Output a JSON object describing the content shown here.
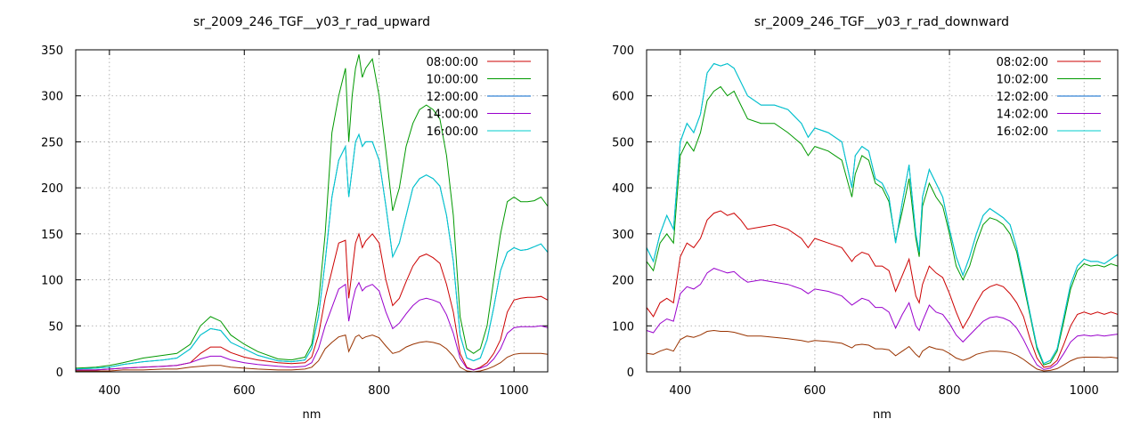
{
  "chart_data": [
    {
      "type": "line",
      "title": "sr_2009_246_TGF__y03_r_rad_upward",
      "xlabel": "nm",
      "ylabel": "",
      "xlim": [
        350,
        1050
      ],
      "ylim": [
        0,
        350
      ],
      "xticks": [
        400,
        600,
        800,
        1000
      ],
      "yticks": [
        0,
        50,
        100,
        150,
        200,
        250,
        300,
        350
      ],
      "grid": true,
      "legend_position": "top-right",
      "x": [
        350,
        380,
        400,
        420,
        450,
        480,
        500,
        520,
        535,
        550,
        565,
        580,
        600,
        620,
        650,
        670,
        690,
        700,
        710,
        720,
        730,
        740,
        750,
        755,
        760,
        765,
        770,
        775,
        780,
        790,
        800,
        810,
        820,
        830,
        840,
        850,
        860,
        870,
        880,
        890,
        900,
        910,
        920,
        930,
        940,
        950,
        960,
        970,
        980,
        990,
        1000,
        1010,
        1020,
        1030,
        1040,
        1050
      ],
      "series": [
        {
          "name": "08:00:00",
          "color": "#cc0000",
          "values": [
            2,
            2,
            3,
            4,
            5,
            6,
            7,
            10,
            20,
            27,
            27,
            21,
            16,
            13,
            10,
            9,
            10,
            16,
            40,
            80,
            110,
            140,
            143,
            80,
            110,
            140,
            150,
            135,
            142,
            150,
            140,
            100,
            72,
            80,
            98,
            115,
            125,
            128,
            124,
            118,
            95,
            65,
            20,
            5,
            2,
            5,
            10,
            20,
            35,
            65,
            78,
            80,
            81,
            81,
            82,
            78
          ]
        },
        {
          "name": "10:00:00",
          "color": "#009900",
          "values": [
            4,
            5,
            7,
            10,
            15,
            18,
            20,
            30,
            50,
            60,
            55,
            40,
            30,
            22,
            14,
            13,
            16,
            30,
            75,
            150,
            260,
            300,
            330,
            250,
            300,
            330,
            345,
            320,
            330,
            340,
            300,
            240,
            175,
            200,
            245,
            270,
            285,
            290,
            285,
            275,
            235,
            170,
            60,
            25,
            20,
            25,
            50,
            100,
            150,
            185,
            190,
            185,
            185,
            186,
            190,
            180
          ]
        },
        {
          "name": "12:00:00",
          "color": "#0066cc",
          "values": [
            3,
            4,
            5,
            8,
            11,
            13,
            15,
            25,
            40,
            47,
            45,
            32,
            25,
            18,
            12,
            11,
            13,
            25,
            60,
            120,
            190,
            230,
            245,
            190,
            220,
            250,
            258,
            245,
            250,
            250,
            230,
            180,
            125,
            140,
            170,
            200,
            210,
            214,
            210,
            202,
            170,
            120,
            40,
            15,
            12,
            15,
            35,
            70,
            110,
            130,
            135,
            132,
            133,
            136,
            139,
            130
          ]
        },
        {
          "name": "14:00:00",
          "color": "#9900cc",
          "values": [
            2,
            2,
            3,
            4,
            5,
            6,
            7,
            10,
            14,
            17,
            17,
            13,
            10,
            8,
            6,
            5,
            6,
            10,
            25,
            50,
            70,
            90,
            95,
            55,
            75,
            90,
            97,
            88,
            92,
            95,
            88,
            65,
            47,
            53,
            63,
            72,
            78,
            80,
            78,
            75,
            62,
            42,
            15,
            4,
            2,
            4,
            7,
            14,
            25,
            42,
            48,
            49,
            49,
            49,
            50,
            48
          ]
        },
        {
          "name": "16:00:00",
          "color": "#00cccc",
          "values": [
            3,
            4,
            5,
            8,
            11,
            13,
            15,
            25,
            40,
            47,
            45,
            32,
            25,
            18,
            12,
            11,
            13,
            25,
            60,
            120,
            190,
            230,
            245,
            190,
            220,
            250,
            258,
            245,
            250,
            250,
            230,
            180,
            125,
            140,
            170,
            200,
            210,
            214,
            210,
            202,
            170,
            120,
            40,
            15,
            12,
            15,
            35,
            70,
            110,
            130,
            135,
            132,
            133,
            136,
            139,
            130
          ]
        },
        {
          "name": "",
          "color": "#993300",
          "values": [
            1,
            1,
            1,
            2,
            2,
            3,
            3,
            5,
            6,
            7,
            7,
            5,
            4,
            3,
            2,
            2,
            3,
            5,
            12,
            25,
            32,
            38,
            40,
            22,
            30,
            38,
            40,
            36,
            38,
            40,
            37,
            28,
            20,
            22,
            27,
            30,
            32,
            33,
            32,
            30,
            25,
            17,
            5,
            1,
            0,
            1,
            3,
            6,
            10,
            16,
            19,
            20,
            20,
            20,
            20,
            19
          ]
        }
      ]
    },
    {
      "type": "line",
      "title": "sr_2009_246_TGF__y03_r_rad_downward",
      "xlabel": "nm",
      "ylabel": "",
      "xlim": [
        350,
        1050
      ],
      "ylim": [
        0,
        700
      ],
      "xticks": [
        400,
        600,
        800,
        1000
      ],
      "yticks": [
        0,
        100,
        200,
        300,
        400,
        500,
        600,
        700
      ],
      "grid": true,
      "legend_position": "top-right",
      "x": [
        350,
        360,
        370,
        380,
        390,
        400,
        410,
        420,
        430,
        440,
        450,
        460,
        470,
        480,
        490,
        500,
        520,
        540,
        560,
        580,
        590,
        600,
        620,
        640,
        655,
        660,
        670,
        680,
        690,
        700,
        710,
        720,
        730,
        740,
        750,
        755,
        760,
        770,
        780,
        790,
        800,
        810,
        820,
        830,
        840,
        850,
        860,
        870,
        880,
        890,
        900,
        910,
        920,
        930,
        940,
        950,
        960,
        970,
        980,
        990,
        1000,
        1010,
        1020,
        1030,
        1040,
        1050
      ],
      "series": [
        {
          "name": "08:02:00",
          "color": "#cc0000",
          "values": [
            140,
            120,
            150,
            160,
            150,
            250,
            280,
            270,
            290,
            330,
            345,
            350,
            340,
            345,
            330,
            310,
            315,
            320,
            310,
            290,
            270,
            290,
            280,
            270,
            240,
            250,
            260,
            255,
            230,
            230,
            220,
            175,
            210,
            245,
            165,
            150,
            190,
            230,
            215,
            205,
            170,
            130,
            95,
            120,
            150,
            175,
            185,
            190,
            185,
            170,
            150,
            120,
            70,
            30,
            10,
            12,
            25,
            60,
            100,
            125,
            130,
            125,
            130,
            125,
            130,
            125
          ]
        },
        {
          "name": "10:02:00",
          "color": "#009900",
          "values": [
            240,
            220,
            280,
            300,
            280,
            470,
            500,
            480,
            520,
            590,
            610,
            620,
            600,
            610,
            580,
            550,
            540,
            540,
            520,
            495,
            470,
            490,
            480,
            460,
            380,
            430,
            470,
            460,
            410,
            400,
            370,
            285,
            350,
            420,
            290,
            250,
            360,
            410,
            380,
            360,
            300,
            230,
            200,
            230,
            280,
            320,
            335,
            330,
            320,
            300,
            260,
            190,
            120,
            50,
            15,
            20,
            45,
            110,
            180,
            220,
            235,
            230,
            232,
            228,
            235,
            230
          ]
        },
        {
          "name": "12:02:00",
          "color": "#0066cc",
          "values": [
            270,
            240,
            300,
            340,
            310,
            500,
            540,
            520,
            560,
            650,
            670,
            665,
            670,
            660,
            630,
            600,
            580,
            580,
            570,
            540,
            510,
            530,
            520,
            500,
            400,
            470,
            490,
            480,
            420,
            410,
            380,
            280,
            370,
            450,
            300,
            260,
            380,
            440,
            410,
            380,
            310,
            250,
            210,
            250,
            300,
            340,
            355,
            345,
            335,
            320,
            270,
            200,
            125,
            55,
            18,
            25,
            50,
            120,
            190,
            230,
            245,
            240,
            240,
            235,
            245,
            255
          ]
        },
        {
          "name": "14:02:00",
          "color": "#9900cc",
          "values": [
            90,
            85,
            105,
            115,
            110,
            170,
            185,
            180,
            190,
            215,
            225,
            220,
            215,
            218,
            205,
            195,
            200,
            195,
            190,
            180,
            170,
            180,
            175,
            165,
            145,
            150,
            160,
            155,
            140,
            140,
            130,
            95,
            125,
            150,
            100,
            90,
            110,
            145,
            130,
            125,
            105,
            80,
            65,
            80,
            95,
            110,
            118,
            120,
            117,
            110,
            95,
            70,
            40,
            15,
            5,
            8,
            18,
            40,
            65,
            78,
            80,
            78,
            80,
            78,
            80,
            82
          ]
        },
        {
          "name": "16:02:00",
          "color": "#00cccc",
          "values": [
            270,
            240,
            300,
            340,
            310,
            500,
            540,
            520,
            560,
            650,
            670,
            665,
            670,
            660,
            630,
            600,
            580,
            580,
            570,
            540,
            510,
            530,
            520,
            500,
            400,
            470,
            490,
            480,
            420,
            410,
            380,
            280,
            370,
            450,
            300,
            260,
            380,
            440,
            410,
            380,
            310,
            250,
            210,
            250,
            300,
            340,
            355,
            345,
            335,
            320,
            270,
            200,
            125,
            55,
            18,
            25,
            50,
            120,
            190,
            230,
            245,
            240,
            240,
            235,
            245,
            255
          ]
        },
        {
          "name": "",
          "color": "#993300",
          "values": [
            40,
            38,
            45,
            50,
            45,
            70,
            78,
            75,
            80,
            88,
            90,
            88,
            88,
            86,
            82,
            78,
            78,
            75,
            72,
            68,
            65,
            68,
            66,
            62,
            52,
            58,
            60,
            58,
            50,
            50,
            48,
            35,
            45,
            55,
            38,
            32,
            45,
            55,
            50,
            48,
            40,
            30,
            25,
            30,
            38,
            42,
            45,
            45,
            44,
            42,
            36,
            27,
            16,
            6,
            2,
            3,
            7,
            15,
            24,
            30,
            32,
            32,
            32,
            31,
            32,
            30
          ]
        }
      ]
    }
  ]
}
